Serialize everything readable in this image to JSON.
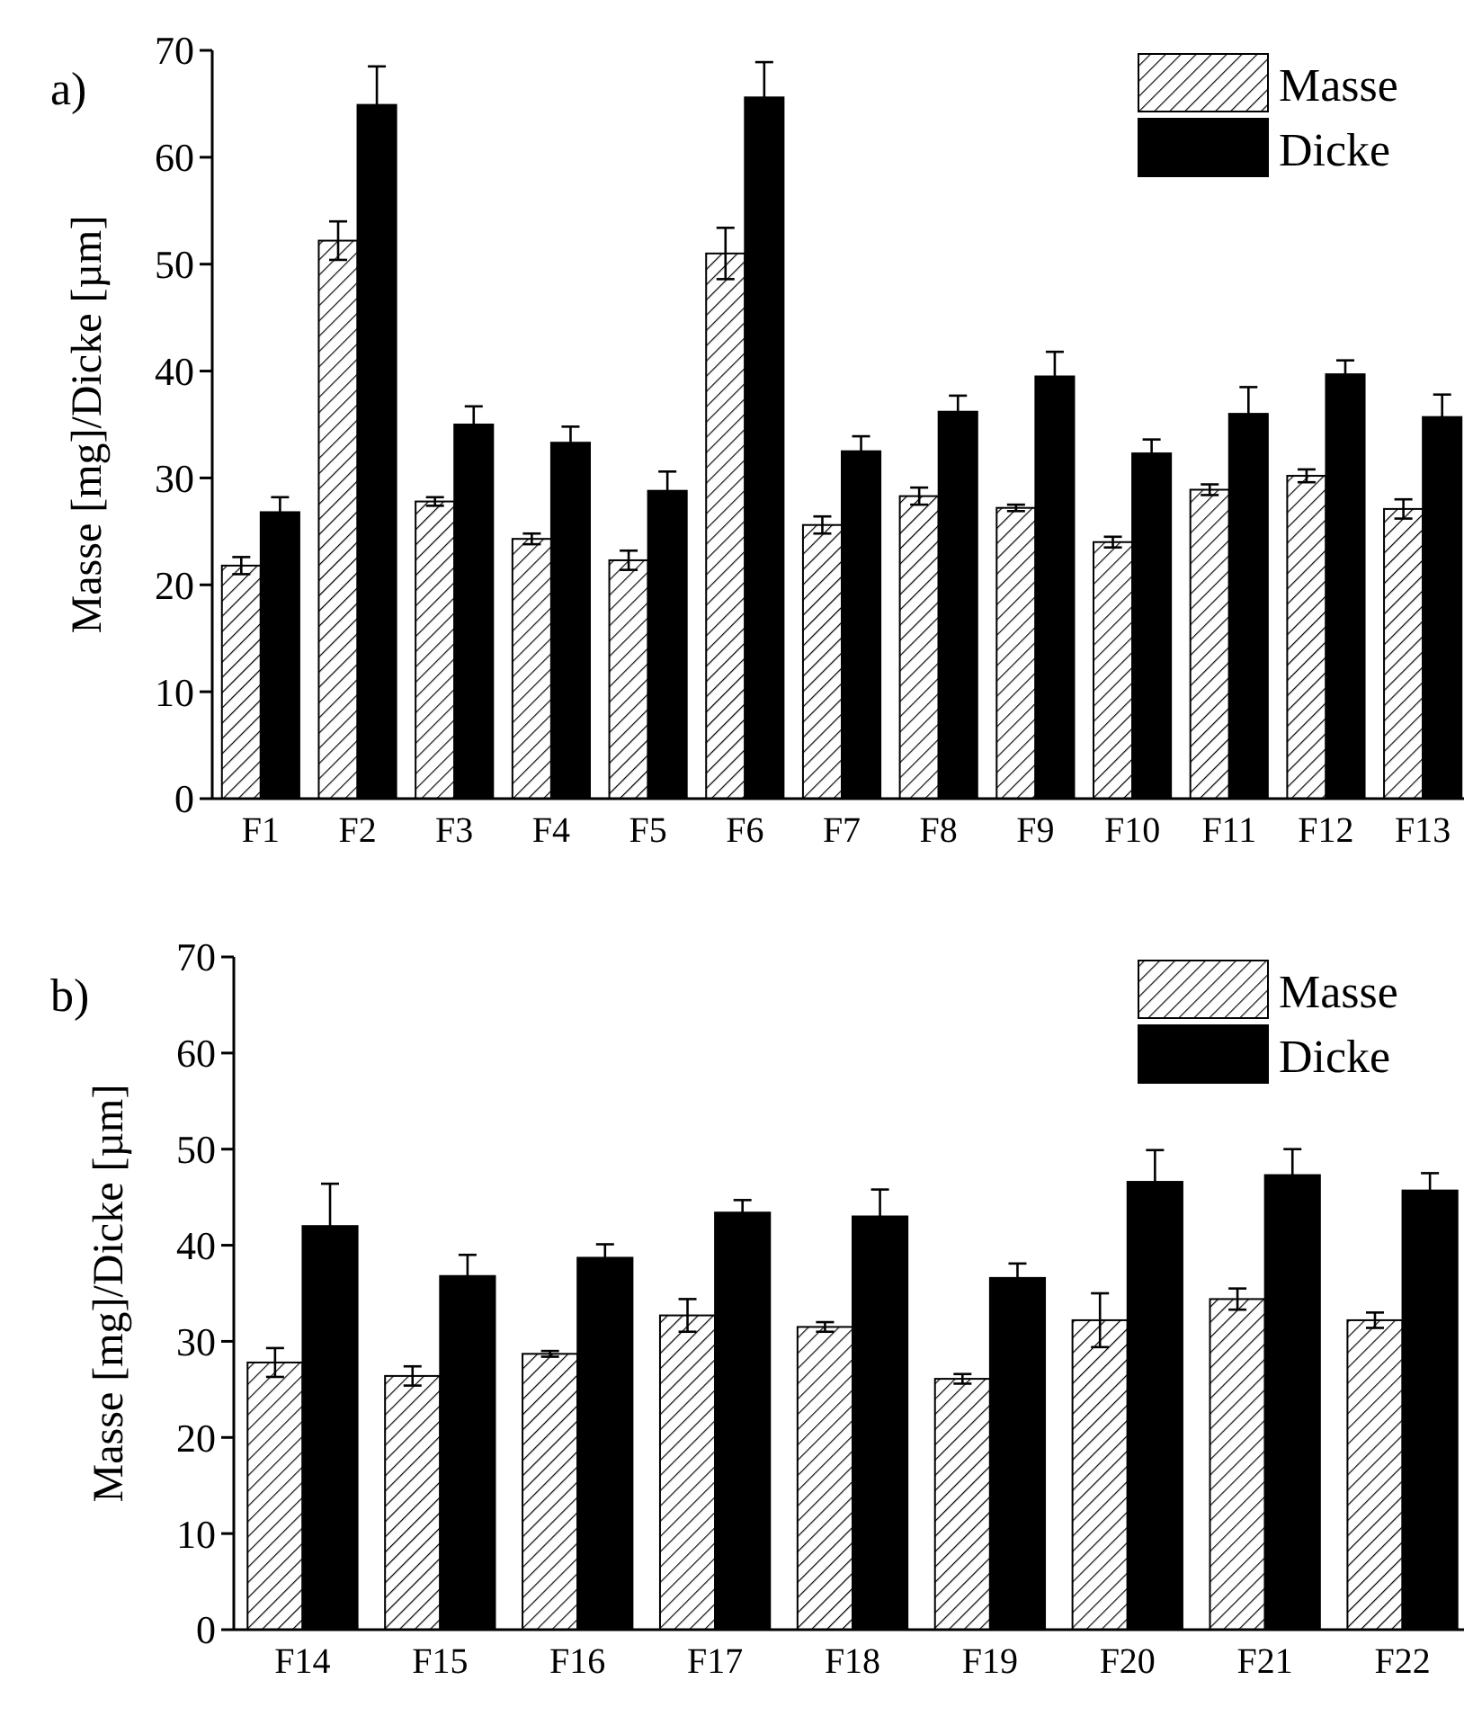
{
  "chart_data": [
    {
      "type": "bar",
      "title": "a)",
      "ylabel": "Masse [mg]/Dicke [µm]",
      "categories": [
        "F1",
        "F2",
        "F3",
        "F4",
        "F5",
        "F6",
        "F7",
        "F8",
        "F9",
        "F10",
        "F11",
        "F12",
        "F13"
      ],
      "ylim": [
        0,
        70
      ],
      "yticks": [
        0,
        10,
        20,
        30,
        40,
        50,
        60,
        70
      ],
      "legend": "top right",
      "series": [
        {
          "name": "Masse",
          "color": "#ffffff",
          "values": [
            21.8,
            52.2,
            27.8,
            24.3,
            22.3,
            51,
            25.6,
            28.3,
            27.2,
            24,
            28.9,
            30.2,
            27.1
          ],
          "errors": [
            0.8,
            1.8,
            0.4,
            0.5,
            0.9,
            2.4,
            0.8,
            0.8,
            0.3,
            0.5,
            0.5,
            0.6,
            0.9
          ]
        },
        {
          "name": "Dicke",
          "color": "#000000",
          "values": [
            26.8,
            64.9,
            35,
            33.3,
            28.8,
            65.6,
            32.5,
            36.2,
            39.5,
            32.3,
            36,
            39.7,
            35.7
          ],
          "errors": [
            1.4,
            3.6,
            1.7,
            1.5,
            1.8,
            3.3,
            1.4,
            1.5,
            2.3,
            1.3,
            2.5,
            1.3,
            2.1
          ]
        }
      ]
    },
    {
      "type": "bar",
      "title": "b)",
      "ylabel": "Masse [mg]/Dicke [µm]",
      "categories": [
        "F14",
        "F15",
        "F16",
        "F17",
        "F18",
        "F19",
        "F20",
        "F21",
        "F22"
      ],
      "ylim": [
        0,
        70
      ],
      "yticks": [
        0,
        10,
        20,
        30,
        40,
        50,
        60,
        70
      ],
      "legend": "top right",
      "series": [
        {
          "name": "Masse",
          "color": "#ffffff",
          "values": [
            27.8,
            26.4,
            28.7,
            32.7,
            31.5,
            26.1,
            32.2,
            34.4,
            32.2
          ],
          "errors": [
            1.5,
            1,
            0.3,
            1.7,
            0.5,
            0.5,
            2.8,
            1.1,
            0.8
          ]
        },
        {
          "name": "Dicke",
          "color": "#000000",
          "values": [
            42,
            36.8,
            38.7,
            43.4,
            43,
            36.6,
            46.6,
            47.3,
            45.7
          ],
          "errors": [
            4.4,
            2.2,
            1.4,
            1.3,
            2.8,
            1.5,
            3.3,
            2.7,
            1.8
          ]
        }
      ]
    }
  ]
}
